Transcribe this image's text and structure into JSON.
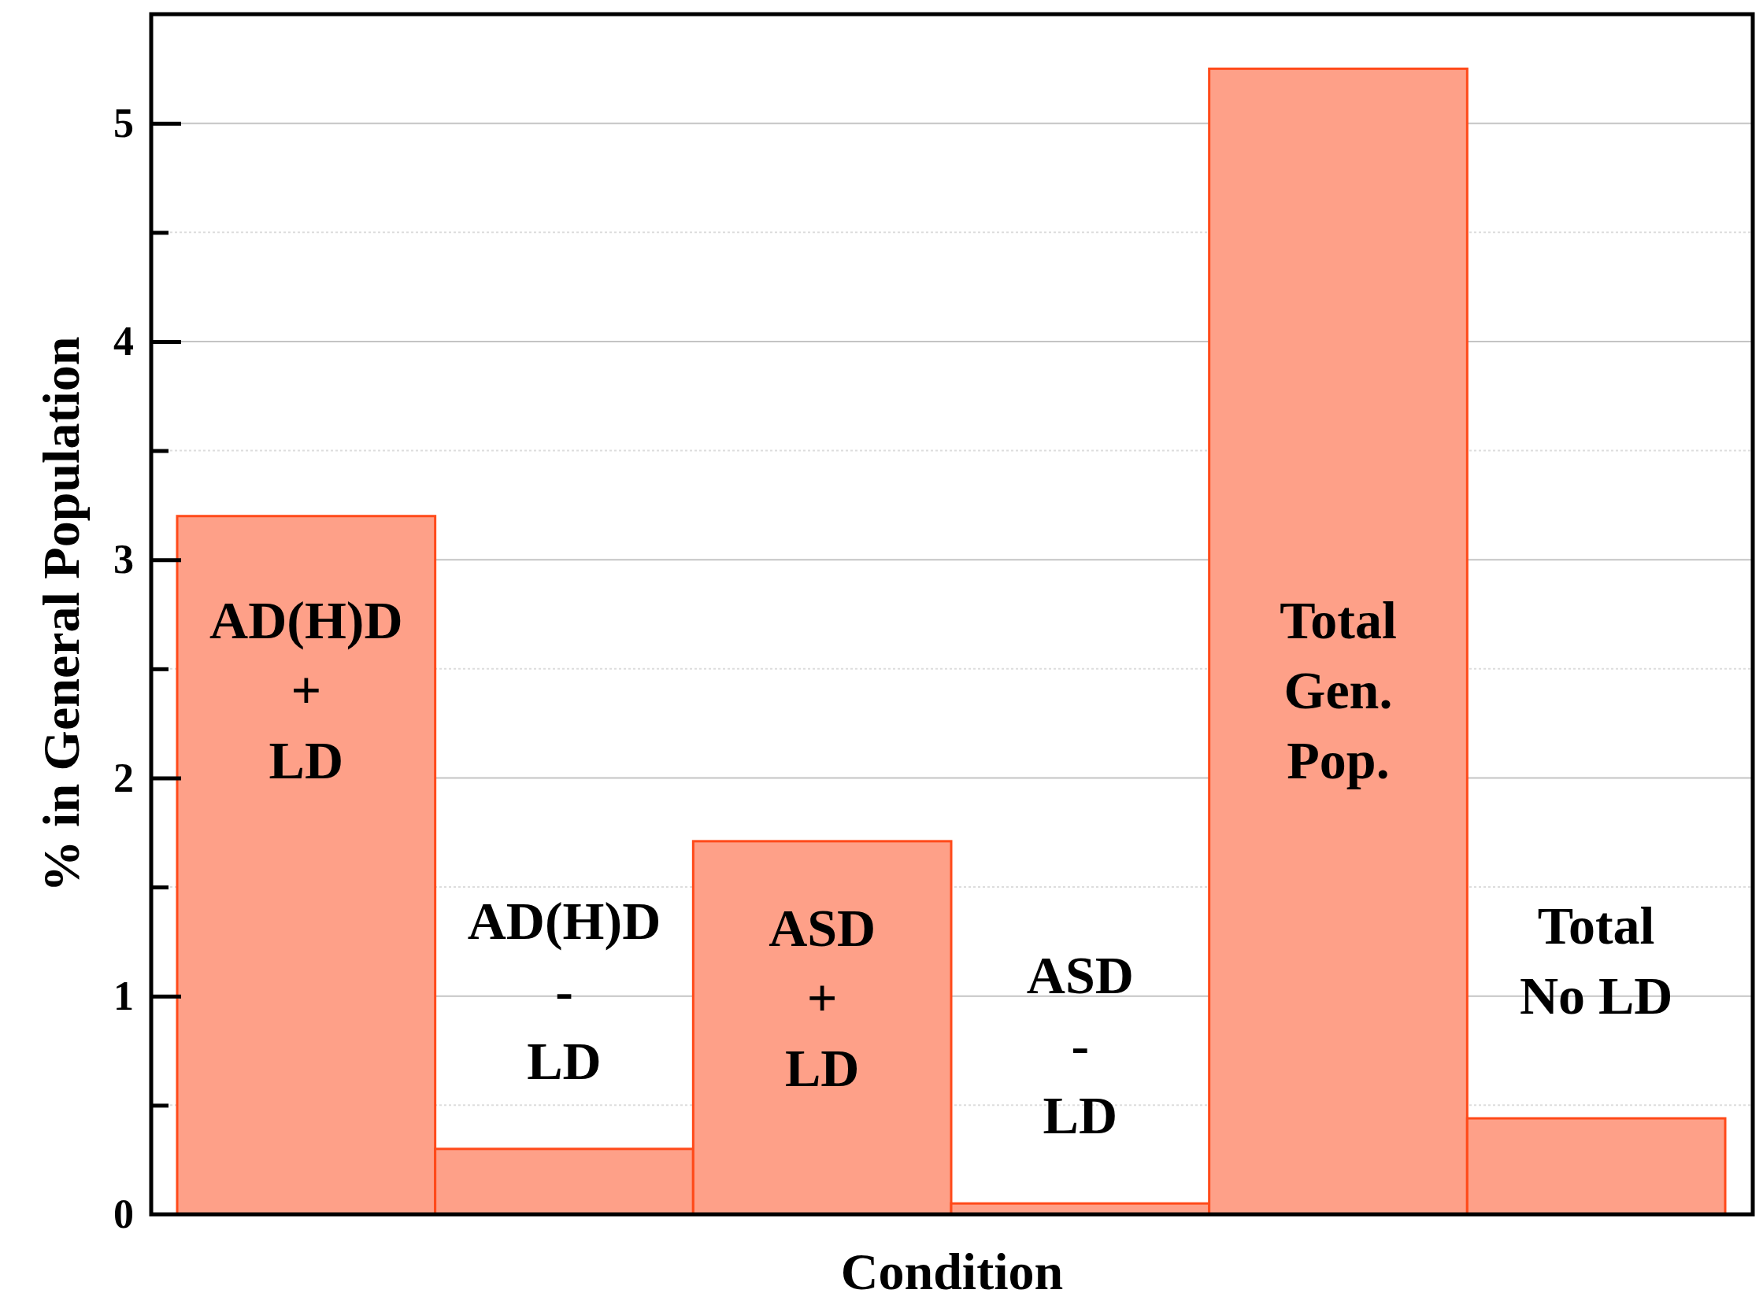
{
  "chart_data": {
    "type": "bar",
    "xlabel": "Condition",
    "ylabel": "% in General Population",
    "categories": [
      "AD(H)D\n+\nLD",
      "AD(H)D\n-\nLD",
      "ASD\n+\nLD",
      "ASD\n-\nLD",
      "Total\nGen.\nPop.",
      "Total\nNo LD"
    ],
    "values": [
      3.2,
      0.3,
      1.71,
      0.05,
      5.25,
      0.44
    ],
    "color": "#fea088",
    "ylim": [
      0,
      5.5
    ],
    "yticks": [
      0,
      {
        "value": 0.5,
        "label": null
      },
      1,
      {
        "value": 1.5,
        "label": null
      },
      2,
      {
        "value": 2.5,
        "label": null
      },
      3,
      {
        "value": 3.5,
        "label": null
      },
      4,
      {
        "value": 4.5,
        "label": null
      },
      5
    ],
    "grid": true
  }
}
